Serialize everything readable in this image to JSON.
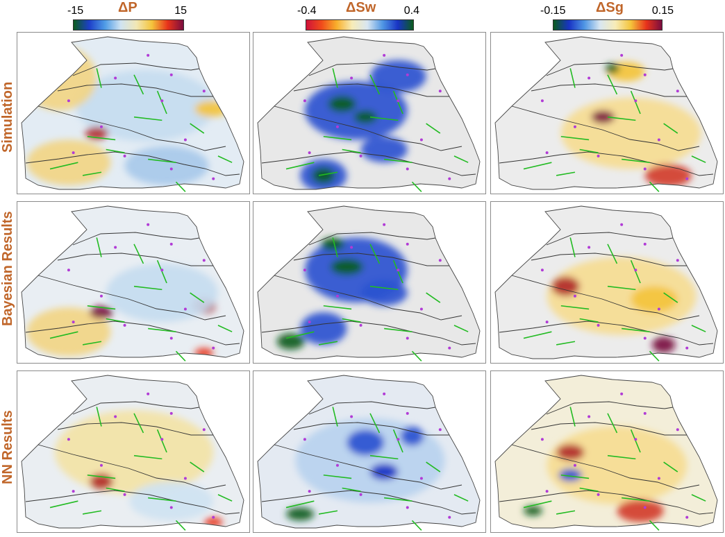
{
  "colorbars": [
    {
      "title": "ΔP",
      "min": "-15",
      "max": "15",
      "gradient": [
        "#0c5c1e",
        "#1d3fc9",
        "#4f9ce6",
        "#cfe3f2",
        "#f1e7b6",
        "#f4c43b",
        "#e8331b",
        "#7a0d3f"
      ]
    },
    {
      "title": "ΔSw",
      "min": "-0.4",
      "max": "0.4",
      "gradient": [
        "#d0123a",
        "#f04b1b",
        "#f8b02c",
        "#f7ecb8",
        "#d8e6f1",
        "#4f96e4",
        "#1833c4",
        "#0c5c1e"
      ]
    },
    {
      "title": "ΔSg",
      "min": "-0.15",
      "max": "0.15",
      "gradient": [
        "#0c5c1e",
        "#1833c4",
        "#4f96e4",
        "#d8e6f1",
        "#f7ecb8",
        "#f4c43b",
        "#e8331b",
        "#7a0d3f"
      ]
    }
  ],
  "rows": [
    "Simulation",
    "Bayesian Results",
    "NN Results"
  ],
  "panels": [
    {
      "id": "simulation-dp",
      "base": "#e3ecf4",
      "blobs": [
        [
          "#c6dcf0",
          0.55,
          0.45,
          0.3,
          0.22
        ],
        [
          "#f2d584",
          0.18,
          0.28,
          0.16,
          0.2
        ],
        [
          "#f2d584",
          0.22,
          0.8,
          0.18,
          0.14
        ],
        [
          "#b22a2a",
          0.34,
          0.62,
          0.05,
          0.04
        ],
        [
          "#f4c43b",
          0.83,
          0.47,
          0.07,
          0.05
        ],
        [
          "#a8c9ea",
          0.64,
          0.82,
          0.18,
          0.12
        ]
      ]
    },
    {
      "id": "simulation-dsw",
      "base": "#e8e8e8",
      "blobs": [
        [
          "#2a52d0",
          0.44,
          0.48,
          0.22,
          0.18
        ],
        [
          "#0c5c1e",
          0.38,
          0.44,
          0.06,
          0.05
        ],
        [
          "#0c5c1e",
          0.48,
          0.52,
          0.05,
          0.04
        ],
        [
          "#2a52d0",
          0.62,
          0.27,
          0.12,
          0.1
        ],
        [
          "#2a52d0",
          0.3,
          0.88,
          0.1,
          0.1
        ],
        [
          "#0c5c1e",
          0.3,
          0.88,
          0.05,
          0.05
        ],
        [
          "#2a52d0",
          0.56,
          0.72,
          0.1,
          0.08
        ]
      ]
    },
    {
      "id": "simulation-dsg",
      "base": "#ececec",
      "blobs": [
        [
          "#f6dc92",
          0.6,
          0.62,
          0.3,
          0.22
        ],
        [
          "#7a0d3f",
          0.48,
          0.52,
          0.05,
          0.04
        ],
        [
          "#d23c2b",
          0.76,
          0.88,
          0.1,
          0.07
        ],
        [
          "#f4c43b",
          0.58,
          0.24,
          0.08,
          0.06
        ],
        [
          "#0c5c1e",
          0.52,
          0.22,
          0.03,
          0.03
        ]
      ]
    },
    {
      "id": "bayesian-dp",
      "base": "#e9eef3",
      "blobs": [
        [
          "#f2d584",
          0.22,
          0.8,
          0.18,
          0.15
        ],
        [
          "#7a0d3f",
          0.36,
          0.68,
          0.05,
          0.04
        ],
        [
          "#b22a2a",
          0.8,
          0.64,
          0.05,
          0.05
        ],
        [
          "#c6dcf0",
          0.62,
          0.56,
          0.24,
          0.18
        ],
        [
          "#e8331b",
          0.8,
          0.93,
          0.04,
          0.03
        ]
      ]
    },
    {
      "id": "bayesian-dsw",
      "base": "#e8e8e8",
      "blobs": [
        [
          "#2a52d0",
          0.44,
          0.42,
          0.22,
          0.2
        ],
        [
          "#0c5c1e",
          0.4,
          0.4,
          0.07,
          0.05
        ],
        [
          "#0c5c1e",
          0.34,
          0.26,
          0.05,
          0.04
        ],
        [
          "#2a52d0",
          0.3,
          0.78,
          0.1,
          0.1
        ],
        [
          "#0c5c1e",
          0.16,
          0.86,
          0.06,
          0.05
        ],
        [
          "#2a52d0",
          0.56,
          0.56,
          0.1,
          0.08
        ]
      ]
    },
    {
      "id": "bayesian-dsg",
      "base": "#ececec",
      "blobs": [
        [
          "#f6dc92",
          0.56,
          0.58,
          0.32,
          0.24
        ],
        [
          "#b22a2a",
          0.32,
          0.52,
          0.06,
          0.06
        ],
        [
          "#7a0d3f",
          0.74,
          0.88,
          0.05,
          0.05
        ],
        [
          "#f4c43b",
          0.7,
          0.6,
          0.1,
          0.08
        ]
      ]
    },
    {
      "id": "nn-dp",
      "base": "#eaeef2",
      "blobs": [
        [
          "#f3e3a6",
          0.5,
          0.5,
          0.34,
          0.26
        ],
        [
          "#b22a2a",
          0.36,
          0.68,
          0.05,
          0.05
        ],
        [
          "#e8331b",
          0.84,
          0.93,
          0.04,
          0.03
        ],
        [
          "#cfe3f2",
          0.66,
          0.8,
          0.18,
          0.12
        ]
      ]
    },
    {
      "id": "nn-dsw",
      "base": "#e4eaf2",
      "blobs": [
        [
          "#b9d3ef",
          0.5,
          0.55,
          0.32,
          0.26
        ],
        [
          "#2a52d0",
          0.48,
          0.44,
          0.08,
          0.08
        ],
        [
          "#1833c4",
          0.56,
          0.62,
          0.06,
          0.05
        ],
        [
          "#0c5c1e",
          0.2,
          0.88,
          0.06,
          0.04
        ],
        [
          "#2a52d0",
          0.68,
          0.4,
          0.05,
          0.06
        ]
      ]
    },
    {
      "id": "nn-dsg",
      "base": "#f3eed9",
      "blobs": [
        [
          "#f6dc92",
          0.54,
          0.58,
          0.3,
          0.24
        ],
        [
          "#b22a2a",
          0.34,
          0.5,
          0.06,
          0.05
        ],
        [
          "#2a52d0",
          0.34,
          0.64,
          0.05,
          0.04
        ],
        [
          "#d23c2b",
          0.64,
          0.86,
          0.1,
          0.07
        ],
        [
          "#0c5c1e",
          0.18,
          0.86,
          0.04,
          0.03
        ]
      ]
    }
  ]
}
